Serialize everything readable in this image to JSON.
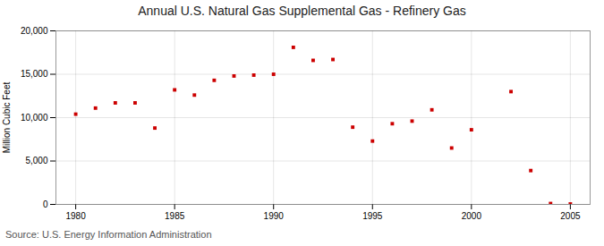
{
  "chart_data": {
    "type": "scatter",
    "title": "Annual U.S. Natural Gas Supplemental Gas - Refinery Gas",
    "ylabel": "Million Cubic Feet",
    "source": "Source: U.S. Energy Information Administration",
    "color": "#cc0000",
    "marker": "square",
    "x": [
      1980,
      1981,
      1982,
      1983,
      1984,
      1985,
      1986,
      1987,
      1988,
      1989,
      1990,
      1991,
      1992,
      1993,
      1994,
      1995,
      1996,
      1997,
      1998,
      1999,
      2000,
      2001,
      2002,
      2003,
      2004,
      2005
    ],
    "values": [
      10400,
      11100,
      11700,
      11700,
      8800,
      13200,
      12600,
      14300,
      14800,
      14900,
      15000,
      18100,
      16600,
      16700,
      8900,
      7300,
      9300,
      9600,
      10900,
      6500,
      8600,
      null,
      13000,
      3900,
      100,
      50
    ],
    "xlim": [
      1979,
      2006
    ],
    "xticks": [
      1980,
      1985,
      1990,
      1995,
      2000,
      2005
    ],
    "ylim": [
      0,
      20000
    ],
    "yticks": [
      0,
      {
        "value": 5000,
        "label": "5,000"
      },
      {
        "value": 10000,
        "label": "10,000"
      },
      {
        "value": 15000,
        "label": "15,000"
      },
      {
        "value": 20000,
        "label": "20,000"
      }
    ],
    "grid": true
  }
}
